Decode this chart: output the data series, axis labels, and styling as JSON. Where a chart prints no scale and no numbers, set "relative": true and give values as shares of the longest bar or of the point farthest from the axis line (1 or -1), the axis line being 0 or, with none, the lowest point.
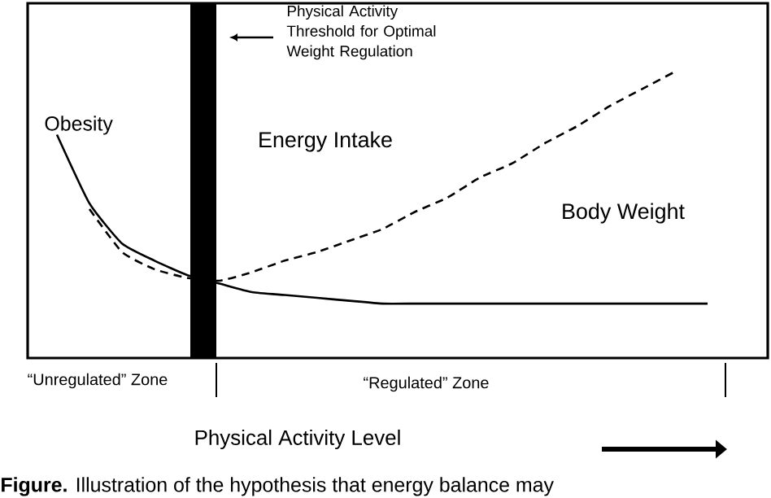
{
  "chart_data": {
    "type": "line",
    "relative": true,
    "tick_labels": false,
    "xlabel": "Physical Activity Level",
    "categories": [
      null,
      null,
      null,
      null,
      null,
      null,
      null,
      null,
      null,
      null,
      null,
      null,
      null,
      null,
      null,
      null,
      null,
      null,
      null,
      null,
      null
    ],
    "series": [
      {
        "color": "#000000",
        "line_style": "solid",
        "values": [
          0.78,
          0.54,
          0.4,
          0.34,
          0.29,
          0.26,
          0.23,
          0.22,
          0.21,
          0.2,
          0.19,
          0.19,
          0.19,
          0.19,
          0.19,
          0.19,
          0.19,
          0.19,
          0.19,
          0.19,
          0.19
        ]
      },
      {
        "color": "#000000",
        "line_style": "dashed",
        "values": [
          null,
          0.52,
          0.37,
          0.31,
          0.28,
          0.27,
          0.3,
          0.34,
          0.37,
          0.41,
          0.45,
          0.51,
          0.56,
          0.63,
          0.68,
          0.75,
          0.81,
          0.88,
          0.94,
          1,
          null
        ]
      }
    ],
    "annotations": [
      "Physical Activity Threshold for Optimal Weight Regulation",
      "Obesity",
      "Energy Intake",
      "Body Weight",
      "“Unregulated” Zone",
      "“Regulated” Zone",
      "**Figure.** Illustration of the hypothesis that energy balance may"
    ]
  }
}
